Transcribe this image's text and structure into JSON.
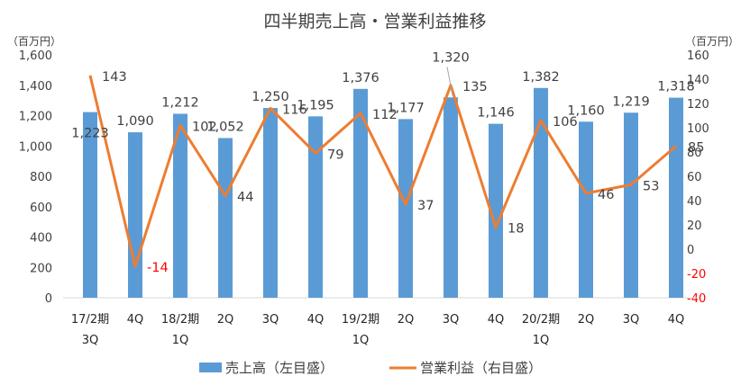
{
  "chart_data": {
    "type": "bar",
    "title": "四半期売上高・営業利益推移",
    "y_left_unit": "（百万円）",
    "y_right_unit": "（百万円）",
    "y_left_ticks": [
      "0",
      "200",
      "400",
      "600",
      "800",
      "1,000",
      "1,200",
      "1,400",
      "1,600"
    ],
    "y_right_ticks": [
      "-40",
      "-20",
      "0",
      "20",
      "40",
      "60",
      "80",
      "100",
      "120",
      "140",
      "160"
    ],
    "ylim_left": [
      0,
      1600
    ],
    "ylim_right": [
      -40,
      160
    ],
    "categories": [
      [
        "17/2期",
        "3Q"
      ],
      [
        "4Q"
      ],
      [
        "18/2期",
        "1Q"
      ],
      [
        "2Q"
      ],
      [
        "3Q"
      ],
      [
        "4Q"
      ],
      [
        "19/2期",
        "1Q"
      ],
      [
        "2Q"
      ],
      [
        "3Q"
      ],
      [
        "4Q"
      ],
      [
        "20/2期",
        "1Q"
      ],
      [
        "2Q"
      ],
      [
        "3Q"
      ],
      [
        "4Q"
      ]
    ],
    "series": [
      {
        "name": "売上高（左目盛）",
        "type": "bar",
        "axis": "left",
        "color": "#5b9bd5",
        "values": [
          1223,
          1090,
          1212,
          1052,
          1250,
          1195,
          1376,
          1177,
          1320,
          1146,
          1382,
          1160,
          1219,
          1318
        ],
        "labels": [
          "1,223",
          "1,090",
          "1,212",
          "1,052",
          "1,250",
          "1,195",
          "1,376",
          "1,177",
          "1,320",
          "1,146",
          "1,382",
          "1,160",
          "1,219",
          "1,318"
        ]
      },
      {
        "name": "営業利益（右目盛）",
        "type": "line",
        "axis": "right",
        "color": "#ed7d31",
        "values": [
          143,
          -14,
          102,
          44,
          116,
          79,
          112,
          37,
          135,
          18,
          106,
          46,
          53,
          85
        ],
        "labels": [
          "143",
          "-14",
          "102",
          "44",
          "116",
          "79",
          "112",
          "37",
          "135",
          "18",
          "106",
          "46",
          "53",
          "85"
        ]
      }
    ],
    "legend": "bottom",
    "grid": false
  }
}
